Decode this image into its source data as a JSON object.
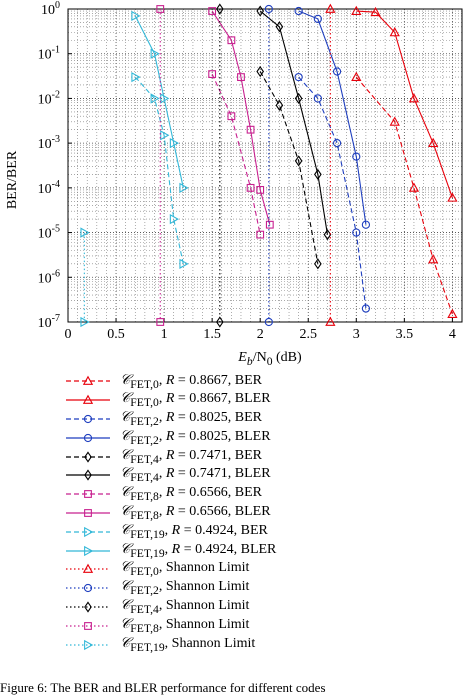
{
  "chart_data": {
    "type": "line",
    "xlabel": "E_b/N_0 (dB)",
    "ylabel": "BER/BER",
    "xlim": [
      0,
      4.1
    ],
    "ylim": [
      1e-07,
      1
    ],
    "yscale": "log",
    "grid": true,
    "x_ticks": [
      "0",
      "0.5",
      "1",
      "1.5",
      "2",
      "2.5",
      "3",
      "3.5",
      "4"
    ],
    "y_ticks": [
      "10^0",
      "10^-1",
      "10^-2",
      "10^-3",
      "10^-4",
      "10^-5",
      "10^-6",
      "10^-7"
    ],
    "legend_position": "below",
    "series": [
      {
        "name": "C_FET,0, R = 0.8667, BER",
        "color": "#e8000b",
        "marker": "triangle-up",
        "dash": "dashed",
        "x": [
          3.0,
          3.4,
          3.6,
          3.8,
          4.0
        ],
        "y": [
          0.03,
          0.003,
          0.0001,
          2.5e-06,
          1.5e-07
        ]
      },
      {
        "name": "C_FET,0, R = 0.8667, BLER",
        "color": "#e8000b",
        "marker": "triangle-up",
        "dash": "solid",
        "x": [
          3.0,
          3.2,
          3.4,
          3.6,
          3.8,
          4.0
        ],
        "y": [
          0.9,
          0.85,
          0.3,
          0.01,
          0.001,
          6e-05
        ]
      },
      {
        "name": "C_FET,2, R = 0.8025, BER",
        "color": "#1f3fbf",
        "marker": "circle",
        "dash": "dashed",
        "x": [
          2.4,
          2.6,
          2.8,
          3.0,
          3.1
        ],
        "y": [
          0.03,
          0.01,
          0.001,
          1e-05,
          2e-07
        ]
      },
      {
        "name": "C_FET,2, R = 0.8025, BLER",
        "color": "#1f3fbf",
        "marker": "circle",
        "dash": "solid",
        "x": [
          2.4,
          2.6,
          2.8,
          3.0,
          3.1
        ],
        "y": [
          0.9,
          0.6,
          0.04,
          0.0005,
          1.5e-05
        ]
      },
      {
        "name": "C_FET,4, R = 0.7471, BER",
        "color": "#000000",
        "marker": "diamond",
        "dash": "dashed",
        "x": [
          2.0,
          2.2,
          2.4,
          2.6
        ],
        "y": [
          0.04,
          0.007,
          0.0004,
          2e-06
        ]
      },
      {
        "name": "C_FET,4, R = 0.7471, BLER",
        "color": "#000000",
        "marker": "diamond",
        "dash": "solid",
        "x": [
          2.0,
          2.2,
          2.4,
          2.6,
          2.7
        ],
        "y": [
          0.9,
          0.4,
          0.01,
          0.0002,
          9e-06
        ]
      },
      {
        "name": "C_FET,8, R = 0.6566, BER",
        "color": "#c8208f",
        "marker": "square",
        "dash": "dashed",
        "x": [
          1.5,
          1.7,
          1.9,
          2.0
        ],
        "y": [
          0.035,
          0.004,
          0.0001,
          9e-06
        ]
      },
      {
        "name": "C_FET,8, R = 0.6566, BLER",
        "color": "#c8208f",
        "marker": "square",
        "dash": "solid",
        "x": [
          1.5,
          1.7,
          1.8,
          1.9,
          2.0,
          2.1
        ],
        "y": [
          0.9,
          0.2,
          0.03,
          0.002,
          9e-05,
          1.5e-05
        ]
      },
      {
        "name": "C_FET,19, R = 0.4924, BER",
        "color": "#33b8d8",
        "marker": "triangle-right",
        "dash": "dashed",
        "x": [
          0.7,
          0.9,
          1.0,
          1.1,
          1.2
        ],
        "y": [
          0.03,
          0.01,
          0.0015,
          2e-05,
          2e-06
        ]
      },
      {
        "name": "C_FET,19, R = 0.4924, BLER",
        "color": "#33b8d8",
        "marker": "triangle-right",
        "dash": "solid",
        "x": [
          0.7,
          0.9,
          1.0,
          1.1,
          1.2
        ],
        "y": [
          0.7,
          0.1,
          0.01,
          0.001,
          0.0001
        ]
      },
      {
        "name": "C_FET,0, Shannon Limit",
        "color": "#e8000b",
        "marker": "triangle-up",
        "dash": "dotted",
        "x": [
          2.73,
          2.73
        ],
        "y": [
          1,
          1e-07
        ]
      },
      {
        "name": "C_FET,2, Shannon Limit",
        "color": "#1f3fbf",
        "marker": "circle",
        "dash": "dotted",
        "x": [
          2.09,
          2.09
        ],
        "y": [
          1,
          1e-07
        ]
      },
      {
        "name": "C_FET,4, Shannon Limit",
        "color": "#000000",
        "marker": "diamond",
        "dash": "dotted",
        "x": [
          1.58,
          1.58
        ],
        "y": [
          1,
          1e-07
        ]
      },
      {
        "name": "C_FET,8, Shannon Limit",
        "color": "#c8208f",
        "marker": "square",
        "dash": "dotted",
        "x": [
          0.96,
          0.96
        ],
        "y": [
          1,
          1e-07
        ]
      },
      {
        "name": "C_FET,19, Shannon Limit",
        "color": "#33b8d8",
        "marker": "triangle-right",
        "dash": "dotted",
        "x": [
          0.17,
          0.17
        ],
        "y": [
          1e-05,
          1e-07
        ]
      }
    ]
  },
  "legend": [
    {
      "sub": "FET,0",
      "rate": "R",
      "text": " = 0.8667, BER"
    },
    {
      "sub": "FET,0",
      "rate": "R",
      "text": " = 0.8667, BLER"
    },
    {
      "sub": "FET,2",
      "rate": "R",
      "text": " = 0.8025, BER"
    },
    {
      "sub": "FET,2",
      "rate": "R",
      "text": " = 0.8025, BLER"
    },
    {
      "sub": "FET,4",
      "rate": "R",
      "text": " = 0.7471, BER"
    },
    {
      "sub": "FET,4",
      "rate": "R",
      "text": " = 0.7471, BLER"
    },
    {
      "sub": "FET,8",
      "rate": "R",
      "text": " = 0.6566, BER"
    },
    {
      "sub": "FET,8",
      "rate": "R",
      "text": " = 0.6566, BLER"
    },
    {
      "sub": "FET,19",
      "rate": "R",
      "text": " = 0.4924, BER"
    },
    {
      "sub": "FET,19",
      "rate": "R",
      "text": " = 0.4924, BLER"
    },
    {
      "sub": "FET,0",
      "rate": "",
      "text": "Shannon Limit"
    },
    {
      "sub": "FET,2",
      "rate": "",
      "text": "Shannon Limit"
    },
    {
      "sub": "FET,4",
      "rate": "",
      "text": "Shannon Limit"
    },
    {
      "sub": "FET,8",
      "rate": "",
      "text": "Shannon Limit"
    },
    {
      "sub": "FET,19",
      "rate": "",
      "text": "Shannon Limit"
    }
  ],
  "axis_text": {
    "ylabel": "BER/BER",
    "xlabel_main": "E",
    "xlabel_sub1": "b",
    "xlabel_mid": "/N",
    "xlabel_sub2": "0",
    "xlabel_unit": " (dB)"
  },
  "caption": "Figure 6: The BER and BLER performance for different codes"
}
